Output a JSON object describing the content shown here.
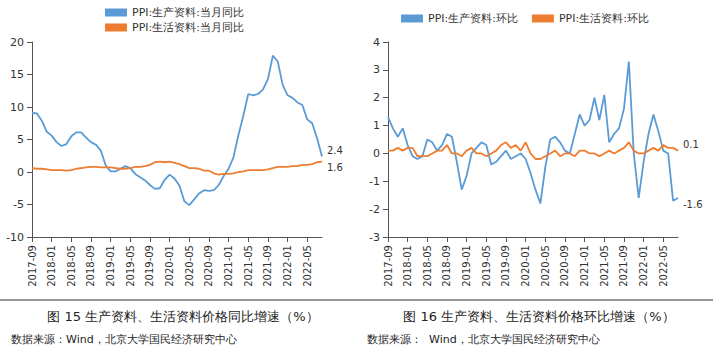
{
  "chart_data": [
    {
      "type": "line",
      "title": "图 15 生产资料、生活资料价格同比增速（%）",
      "source": "数据来源：Wind，北京大学国民经济研究中心",
      "categories": [
        "2017-09",
        null,
        null,
        null,
        "2018-01",
        null,
        null,
        null,
        "2018-05",
        null,
        null,
        null,
        "2018-09",
        null,
        null,
        null,
        "2019-01",
        null,
        null,
        null,
        "2019-05",
        null,
        null,
        null,
        "2019-09",
        null,
        null,
        null,
        "2020-01",
        null,
        null,
        null,
        "2020-05",
        null,
        null,
        null,
        "2020-09",
        null,
        null,
        null,
        "2021-01",
        null,
        null,
        null,
        "2021-05",
        null,
        null,
        null,
        "2021-09",
        null,
        null,
        null,
        "2022-01",
        null,
        null,
        null,
        "2022-05",
        null,
        null,
        null
      ],
      "series": [
        {
          "name": "PPI:生产资料:当月同比",
          "color": "#5b9bd5",
          "values": [
            9.1,
            9.0,
            7.9,
            6.2,
            5.6,
            4.6,
            4.0,
            4.3,
            5.5,
            6.1,
            6.1,
            5.3,
            4.6,
            4.2,
            3.3,
            1.0,
            0.1,
            0.1,
            0.5,
            0.9,
            0.6,
            -0.3,
            -0.8,
            -1.3,
            -2.0,
            -2.6,
            -2.5,
            -1.2,
            -0.4,
            -1.0,
            -2.1,
            -4.5,
            -5.1,
            -4.2,
            -3.3,
            -2.8,
            -2.9,
            -2.8,
            -2.0,
            -0.6,
            0.5,
            2.3,
            5.7,
            8.7,
            12.0,
            11.8,
            12.0,
            12.7,
            14.3,
            17.9,
            17.0,
            13.4,
            11.8,
            11.4,
            10.7,
            10.3,
            8.1,
            7.5,
            5.2,
            2.4
          ]
        },
        {
          "name": "PPI:生活资料:当月同比",
          "color": "#ed7d31",
          "values": [
            0.6,
            0.5,
            0.5,
            0.4,
            0.3,
            0.3,
            0.3,
            0.2,
            0.3,
            0.5,
            0.6,
            0.7,
            0.8,
            0.8,
            0.7,
            0.7,
            0.7,
            0.6,
            0.5,
            0.5,
            0.6,
            0.8,
            0.8,
            0.9,
            1.1,
            1.5,
            1.6,
            1.5,
            1.6,
            1.4,
            1.2,
            0.9,
            0.6,
            0.6,
            0.5,
            0.2,
            0.2,
            -0.2,
            -0.4,
            -0.3,
            -0.3,
            -0.2,
            0.0,
            0.1,
            0.3,
            0.3,
            0.3,
            0.3,
            0.4,
            0.6,
            0.8,
            0.8,
            0.8,
            0.9,
            0.9,
            1.1,
            1.1,
            1.2,
            1.5,
            1.6
          ]
        }
      ],
      "ylim": [
        -10,
        20
      ],
      "yticks": [
        -10,
        -5,
        0,
        5,
        10,
        15,
        20
      ],
      "grid": false,
      "legend": "top",
      "annotations": [
        {
          "series": "PPI:生产资料:当月同比",
          "text": "2.4"
        },
        {
          "series": "PPI:生活资料:当月同比",
          "text": "1.6"
        }
      ]
    },
    {
      "type": "line",
      "title": "图 16 生产资料、生活资料价格环比增速（%）",
      "source": "数据来源：  Wind，北京大学国民经济研究中心",
      "categories": [
        "2017-09",
        null,
        null,
        null,
        "2018-01",
        null,
        null,
        null,
        "2018-05",
        null,
        null,
        null,
        "2018-09",
        null,
        null,
        null,
        "2019-01",
        null,
        null,
        null,
        "2019-05",
        null,
        null,
        null,
        "2019-09",
        null,
        null,
        null,
        "2020-01",
        null,
        null,
        null,
        "2020-05",
        null,
        null,
        null,
        "2020-09",
        null,
        null,
        null,
        "2021-01",
        null,
        null,
        null,
        "2021-05",
        null,
        null,
        null,
        "2021-09",
        null,
        null,
        null,
        "2022-01",
        null,
        null,
        null,
        "2022-05",
        null,
        null,
        null
      ],
      "series": [
        {
          "name": "PPI:生产资料:环比",
          "color": "#5b9bd5",
          "values": [
            1.3,
            0.9,
            0.6,
            0.9,
            0.3,
            -0.1,
            -0.2,
            -0.1,
            0.5,
            0.4,
            0.1,
            0.3,
            0.7,
            0.6,
            -0.3,
            -1.3,
            -0.8,
            0.0,
            0.2,
            0.4,
            0.3,
            -0.4,
            -0.3,
            -0.1,
            0.1,
            -0.2,
            -0.1,
            0.0,
            -0.2,
            -0.7,
            -1.3,
            -1.8,
            -0.5,
            0.5,
            0.6,
            0.4,
            0.1,
            0.0,
            0.7,
            1.4,
            1.0,
            1.2,
            2.0,
            1.2,
            2.1,
            0.4,
            0.7,
            0.9,
            1.6,
            3.3,
            0.0,
            -1.6,
            -0.3,
            0.7,
            1.4,
            0.8,
            0.1,
            0.0,
            -1.7,
            -1.6
          ]
        },
        {
          "name": "PPI:生活资料:环比",
          "color": "#ed7d31",
          "values": [
            0.1,
            0.1,
            0.2,
            0.1,
            0.2,
            0.2,
            -0.1,
            -0.1,
            -0.1,
            0.0,
            0.1,
            0.1,
            0.3,
            0.0,
            0.0,
            -0.1,
            0.1,
            0.2,
            0.0,
            0.0,
            -0.1,
            0.0,
            0.1,
            0.3,
            0.4,
            0.2,
            0.3,
            0.1,
            0.4,
            0.0,
            -0.2,
            -0.2,
            -0.1,
            0.0,
            0.1,
            -0.1,
            0.0,
            0.0,
            -0.1,
            0.1,
            0.1,
            0.0,
            0.0,
            -0.1,
            0.0,
            0.1,
            0.0,
            0.1,
            0.2,
            0.4,
            0.1,
            0.0,
            0.0,
            0.1,
            0.2,
            0.1,
            0.3,
            0.2,
            0.2,
            0.1
          ]
        }
      ],
      "ylim": [
        -3,
        4
      ],
      "yticks": [
        -3,
        -2,
        -1,
        0,
        1,
        2,
        3,
        4
      ],
      "grid": false,
      "legend": "top",
      "annotations": [
        {
          "series": "PPI:生产资料:环比",
          "text": "-1.6"
        },
        {
          "series": "PPI:生活资料:环比",
          "text": "0.1"
        }
      ]
    }
  ]
}
